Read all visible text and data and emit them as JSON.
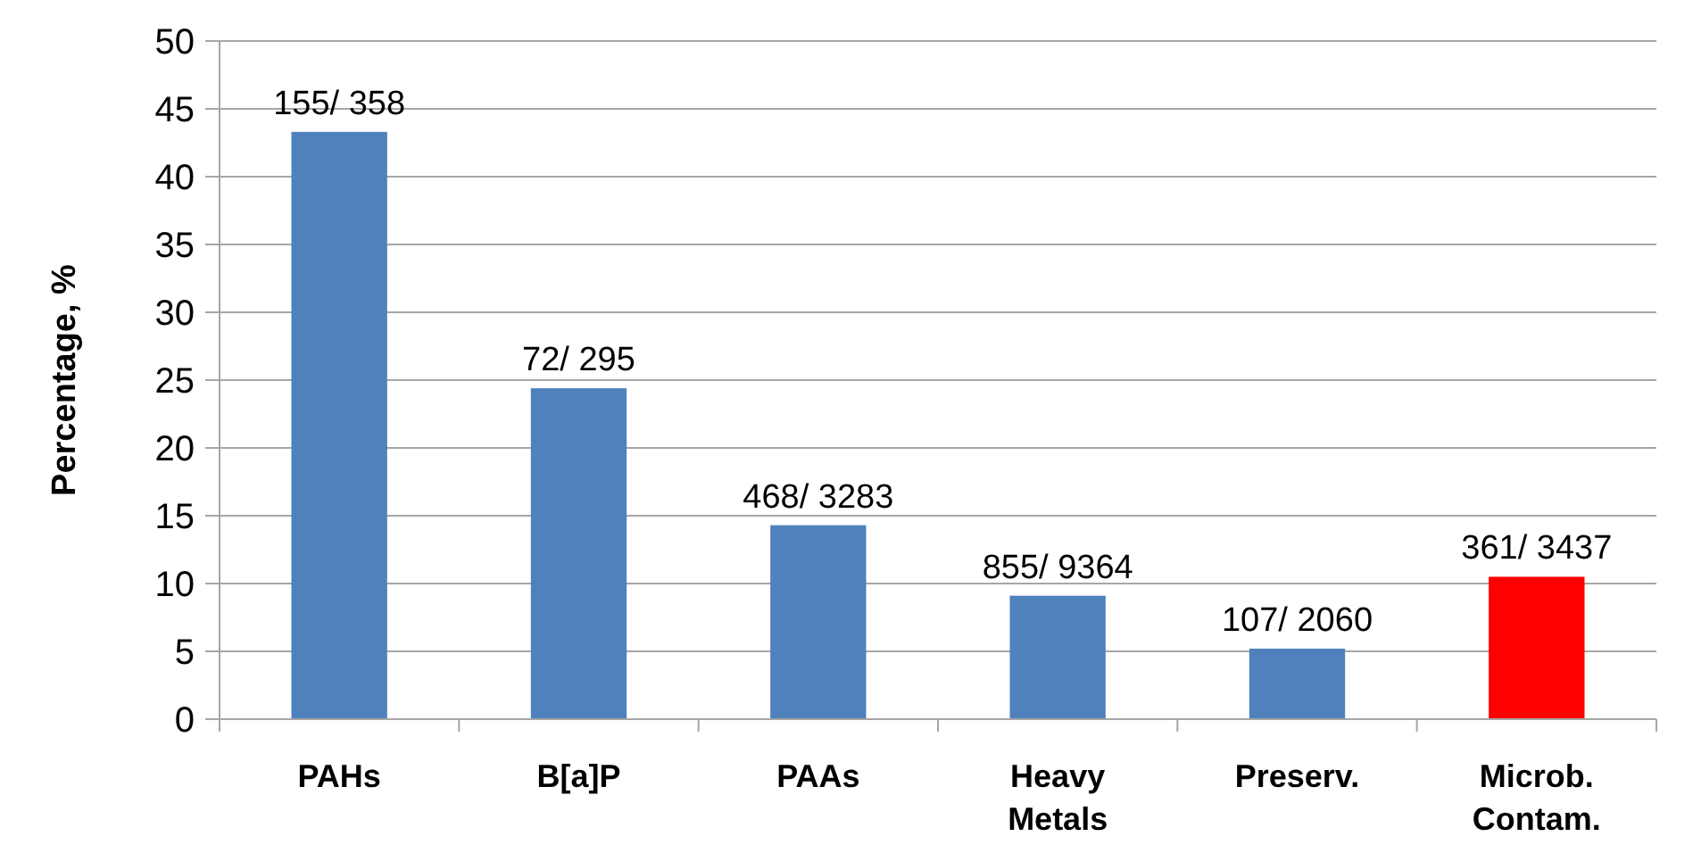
{
  "chart_data": {
    "type": "bar",
    "ylabel": "Percentage, %",
    "categories": [
      "PAHs",
      "B[a]P",
      "PAAs",
      "Heavy Metals",
      "Preserv.",
      "Microb. Contam."
    ],
    "values": [
      43.3,
      24.4,
      14.3,
      9.1,
      5.2,
      10.5
    ],
    "colors": [
      "#4f81bd",
      "#4f81bd",
      "#4f81bd",
      "#4f81bd",
      "#4f81bd",
      "#ff0000"
    ],
    "value_labels": [
      "155/ 358",
      "72/ 295",
      "468/ 3283",
      "855/ 9364",
      "107/ 2060",
      "361/ 3437"
    ],
    "ylim": [
      0,
      50
    ],
    "yticks": [
      0,
      5,
      10,
      15,
      20,
      25,
      30,
      35,
      40,
      45,
      50
    ],
    "grid": "y"
  }
}
